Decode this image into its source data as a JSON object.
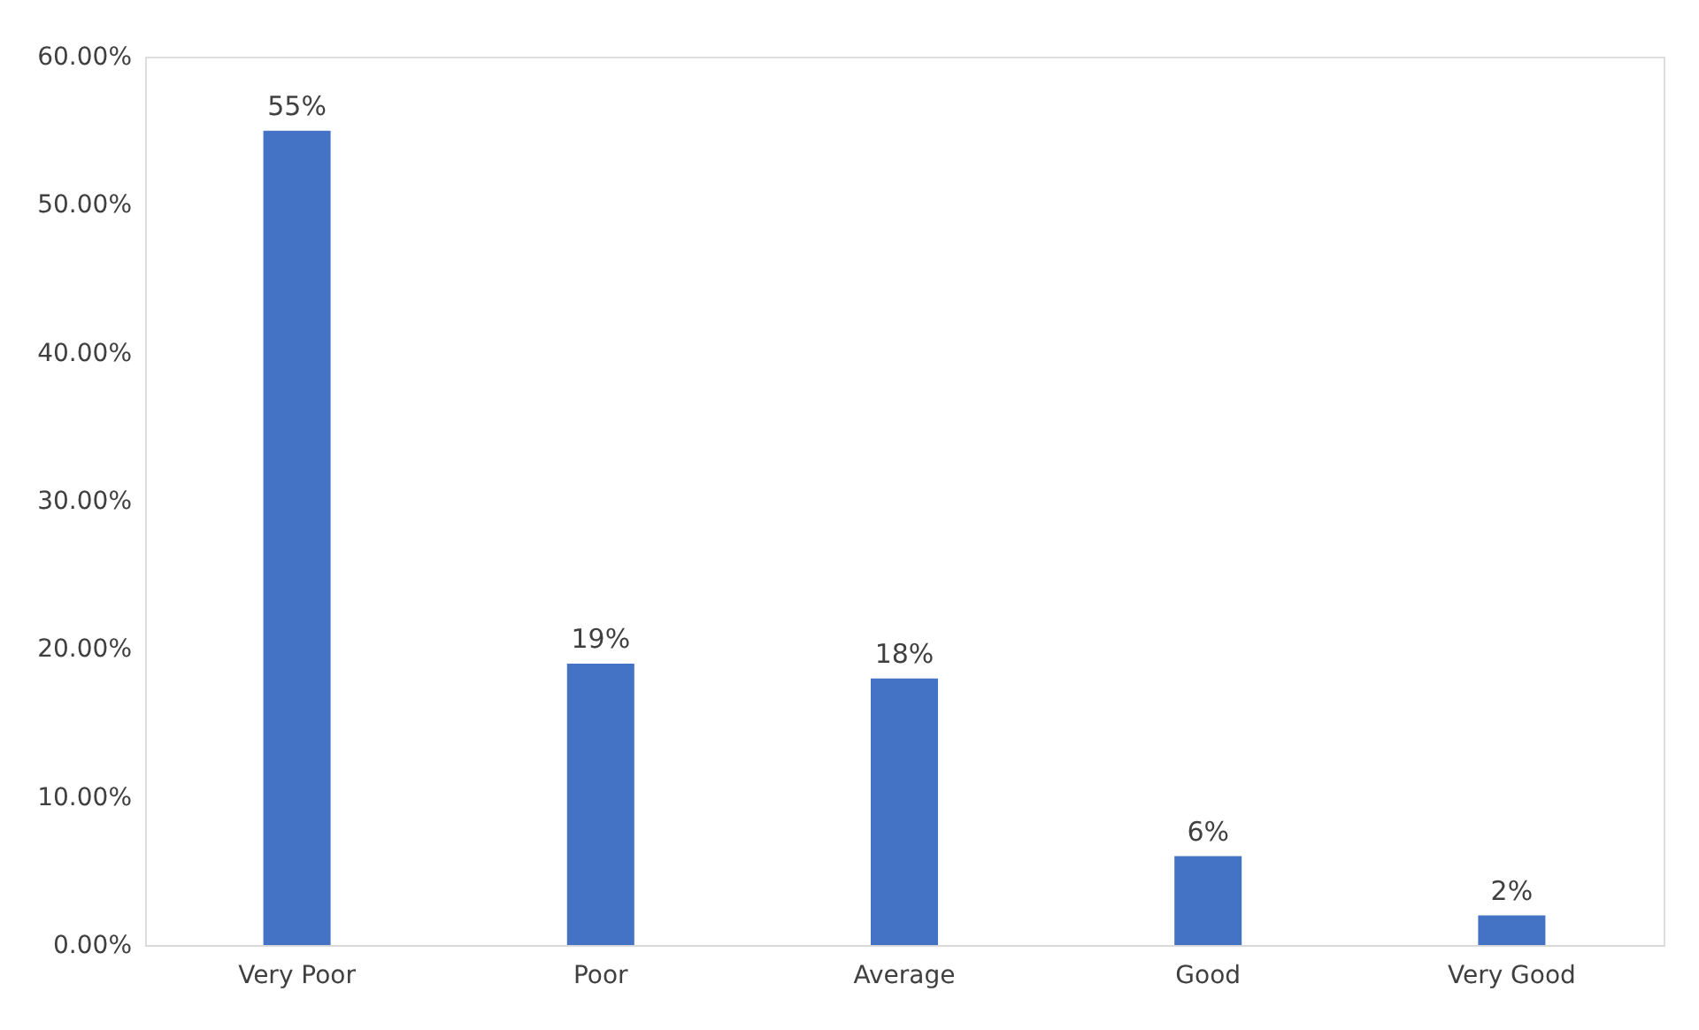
{
  "chart_data": {
    "type": "bar",
    "categories": [
      "Very Poor",
      "Poor",
      "Average",
      "Good",
      "Very Good"
    ],
    "values": [
      55,
      19,
      18,
      6,
      2
    ],
    "value_labels": [
      "55%",
      "19%",
      "18%",
      "6%",
      "2%"
    ],
    "color": "#4472c4",
    "ylim": [
      0,
      60
    ],
    "yticks": [
      {
        "value": 0,
        "label": "0.00%"
      },
      {
        "value": 10,
        "label": "10.00%"
      },
      {
        "value": 20,
        "label": "20.00%"
      },
      {
        "value": 30,
        "label": "30.00%"
      },
      {
        "value": 40,
        "label": "40.00%"
      },
      {
        "value": 50,
        "label": "50.00%"
      },
      {
        "value": 60,
        "label": "60.00%"
      }
    ],
    "grid": false
  }
}
